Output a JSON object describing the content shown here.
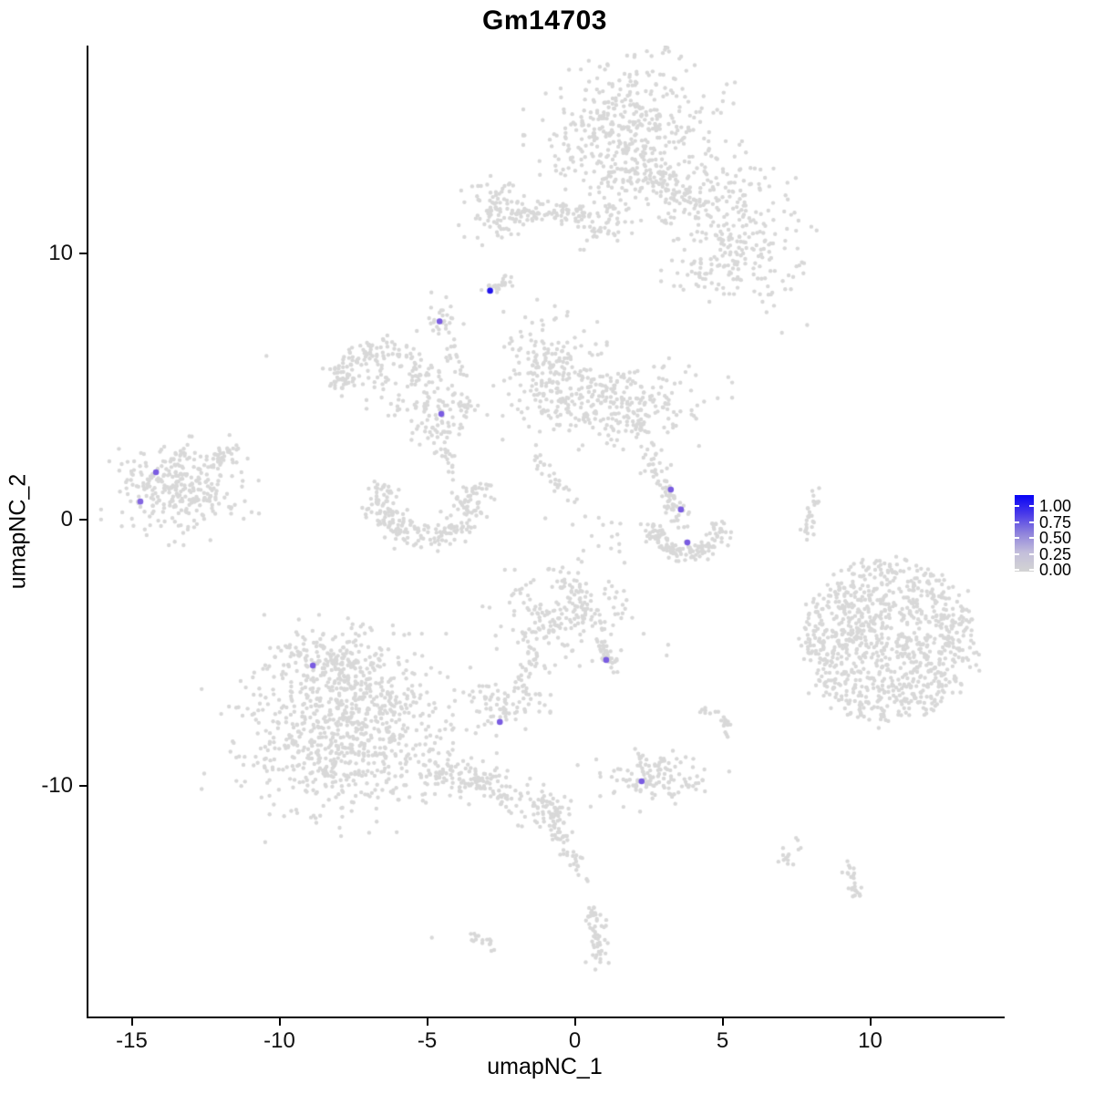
{
  "chart_data": {
    "type": "scatter",
    "subtype": "umap-feature-plot",
    "title": "Gm14703",
    "xlabel": "umapNC_1",
    "ylabel": "umapNC_2",
    "grid": false,
    "x_axis": {
      "ticks": [
        -15,
        -10,
        -5,
        0,
        5,
        10
      ],
      "range": [
        -16.5,
        14.5
      ]
    },
    "y_axis": {
      "ticks": [
        -10,
        0,
        10
      ],
      "range": [
        -17.8,
        16.1
      ]
    },
    "point_colors": {
      "low": "#D3D3D3",
      "high": "#0000FF",
      "background_points": "#D8D8D8"
    },
    "legend": {
      "position": "right",
      "labels": [
        "1.00",
        "0.75",
        "0.50",
        "0.25",
        "0.00"
      ],
      "gradient": [
        "#0703F6",
        "#4B3BE9",
        "#8F83DC",
        "#C3BEDB",
        "#D3D3D3"
      ]
    },
    "clusters": {
      "blob_format": [
        "cx",
        "cy",
        "sx",
        "sy",
        "n"
      ],
      "blobs": [
        [
          1.84,
          14.32,
          1.35,
          1.55,
          520
        ],
        [
          4.92,
          11.92,
          1.0,
          0.85,
          140
        ],
        [
          5.6,
          9.93,
          0.75,
          0.8,
          90
        ],
        [
          4.48,
          9.25,
          0.6,
          0.55,
          45
        ],
        [
          6.93,
          9.9,
          0.65,
          1.3,
          30
        ],
        [
          -2.64,
          11.64,
          0.5,
          0.62,
          95
        ],
        [
          0.91,
          11.06,
          0.35,
          0.42,
          35
        ],
        [
          -4.6,
          7.3,
          0.3,
          0.55,
          30
        ],
        [
          -6.3,
          5.2,
          0.8,
          0.55,
          45
        ],
        [
          -4.7,
          3.87,
          0.62,
          0.5,
          70
        ],
        [
          -1.0,
          5.75,
          0.75,
          0.95,
          170
        ],
        [
          1.35,
          4.3,
          1.45,
          0.72,
          280
        ],
        [
          0.5,
          -0.6,
          0.7,
          0.7,
          14
        ],
        [
          -13.4,
          1.2,
          1.0,
          0.8,
          300
        ],
        [
          2.6,
          1.75,
          0.3,
          0.25,
          12
        ],
        [
          -0.35,
          -3.45,
          1.05,
          0.85,
          210
        ],
        [
          -2.5,
          -6.9,
          0.6,
          0.45,
          75
        ],
        [
          -1.05,
          -7.15,
          0.25,
          0.12,
          4
        ],
        [
          -8.0,
          -5.6,
          1.25,
          0.75,
          240
        ],
        [
          -7.7,
          -8.2,
          1.85,
          1.45,
          750
        ],
        [
          -0.85,
          -11.0,
          0.45,
          0.35,
          35
        ],
        [
          2.6,
          -9.75,
          0.95,
          0.45,
          120
        ],
        [
          9.6,
          -4.2,
          0.35,
          0.2,
          22
        ],
        [
          7.2,
          -12.5,
          0.3,
          0.25,
          14
        ]
      ],
      "line_format": [
        "x1",
        "y1",
        "x2",
        "y2",
        "spread",
        "n"
      ],
      "lines": [
        [
          2.7,
          13.0,
          4.0,
          11.9,
          0.3,
          50
        ],
        [
          -2.1,
          11.57,
          0.28,
          11.47,
          0.2,
          65
        ],
        [
          -2.9,
          8.62,
          -2.2,
          9.0,
          0.12,
          22
        ],
        [
          -4.35,
          6.4,
          -3.85,
          5.35,
          0.12,
          16
        ],
        [
          -5.5,
          4.9,
          -3.2,
          4.45,
          0.25,
          28
        ],
        [
          -4.75,
          3.2,
          -4.05,
          1.6,
          0.13,
          22
        ],
        [
          2.05,
          3.5,
          2.85,
          1.65,
          0.15,
          22
        ],
        [
          -1.45,
          2.4,
          -0.15,
          0.7,
          0.15,
          26
        ],
        [
          -12.3,
          2.1,
          -11.45,
          2.85,
          0.18,
          28
        ],
        [
          2.95,
          1.35,
          3.5,
          -0.2,
          0.18,
          55
        ],
        [
          8.1,
          1.0,
          7.72,
          -0.78,
          0.1,
          28
        ],
        [
          0.75,
          -4.5,
          1.25,
          -5.6,
          0.12,
          40
        ],
        [
          -1.65,
          -4.2,
          -1.5,
          -5.4,
          0.1,
          12
        ],
        [
          -2.05,
          -6.25,
          -1.3,
          -5.2,
          0.12,
          18
        ],
        [
          -4.9,
          -9.3,
          -1.3,
          -10.75,
          0.33,
          150
        ],
        [
          2.25,
          -9.1,
          2.1,
          -8.55,
          0.1,
          8
        ],
        [
          -0.95,
          -10.6,
          -0.5,
          -12.0,
          0.18,
          28
        ],
        [
          -0.5,
          -12.0,
          0.3,
          -13.4,
          0.18,
          28
        ],
        [
          4.3,
          -7.1,
          5.2,
          -7.6,
          0.12,
          14
        ],
        [
          5.2,
          -7.6,
          5.05,
          -8.15,
          0.1,
          8
        ],
        [
          9.2,
          -12.85,
          9.5,
          -14.2,
          0.12,
          26
        ],
        [
          0.5,
          -14.3,
          0.8,
          -16.7,
          0.18,
          55
        ],
        [
          -3.45,
          -15.65,
          -2.65,
          -16.15,
          0.1,
          16
        ]
      ],
      "arc_format": [
        "cx",
        "cy",
        "rx",
        "ry",
        "angle1_deg",
        "angle2_deg",
        "radial_spread",
        "n"
      ],
      "arcs": [
        [
          -6.6,
          4.9,
          1.5,
          1.45,
          15,
          180,
          0.16,
          130
        ],
        [
          -5.05,
          0.85,
          1.6,
          1.5,
          160,
          380,
          0.2,
          230
        ],
        [
          3.72,
          -0.35,
          1.05,
          0.95,
          170,
          375,
          0.18,
          140
        ]
      ],
      "disc_format": [
        "cx",
        "cy",
        "rx",
        "ry",
        "n"
      ],
      "discs": [
        [
          10.55,
          -4.55,
          2.9,
          2.95,
          950
        ]
      ],
      "singles": [
        [
          -4.9,
          -15.7
        ],
        [
          -10.5,
          6.15
        ],
        [
          6.95,
          7.02
        ],
        [
          1.45,
          -1.2
        ],
        [
          1.62,
          -1.62
        ],
        [
          3.05,
          -5.1
        ],
        [
          3.1,
          -4.7
        ]
      ]
    },
    "highlighted_points": [
      {
        "x": -2.93,
        "y": 8.6,
        "color": "#2214EB"
      },
      {
        "x": -4.64,
        "y": 7.45,
        "color": "#7A5CE1"
      },
      {
        "x": -4.58,
        "y": 3.97,
        "color": "#7A5CE1"
      },
      {
        "x": -14.24,
        "y": 1.78,
        "color": "#7A5CE1"
      },
      {
        "x": -14.77,
        "y": 0.68,
        "color": "#8365E0"
      },
      {
        "x": 3.19,
        "y": 1.13,
        "color": "#7A5CE1"
      },
      {
        "x": 3.53,
        "y": 0.38,
        "color": "#7A5CE1"
      },
      {
        "x": 3.75,
        "y": -0.86,
        "color": "#7A5CE1"
      },
      {
        "x": 1.0,
        "y": -5.27,
        "color": "#7A5CE1"
      },
      {
        "x": -2.6,
        "y": -7.6,
        "color": "#7A5CE1"
      },
      {
        "x": -8.93,
        "y": -5.48,
        "color": "#7A5CE1"
      },
      {
        "x": 2.2,
        "y": -9.83,
        "color": "#7A5CE1"
      }
    ]
  }
}
